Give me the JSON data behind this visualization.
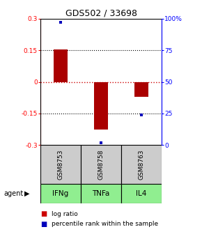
{
  "title": "GDS502 / 33698",
  "samples": [
    "GSM8753",
    "GSM8758",
    "GSM8763"
  ],
  "agents": [
    "IFNg",
    "TNFa",
    "IL4"
  ],
  "log_ratios": [
    0.155,
    -0.225,
    -0.072
  ],
  "percentile_ranks": [
    0.97,
    0.02,
    0.24
  ],
  "ylim_left": [
    -0.3,
    0.3
  ],
  "yticks_left": [
    -0.3,
    -0.15,
    0.0,
    0.15,
    0.3
  ],
  "yticks_left_labels": [
    "-0.3",
    "-0.15",
    "0",
    "0.15",
    "0.3"
  ],
  "yticks_right": [
    0.0,
    0.25,
    0.5,
    0.75,
    1.0
  ],
  "yticks_right_labels": [
    "0",
    "25",
    "50",
    "75",
    "100%"
  ],
  "bar_color": "#aa0000",
  "dot_color": "#0000bb",
  "zero_line_color": "#cc0000",
  "sample_box_color": "#cccccc",
  "agent_box_color": "#90ee90",
  "bar_width": 0.35,
  "hline_positions": [
    -0.15,
    0.0,
    0.15
  ],
  "legend_log_ratio_color": "#cc0000",
  "legend_percentile_color": "#0000bb"
}
